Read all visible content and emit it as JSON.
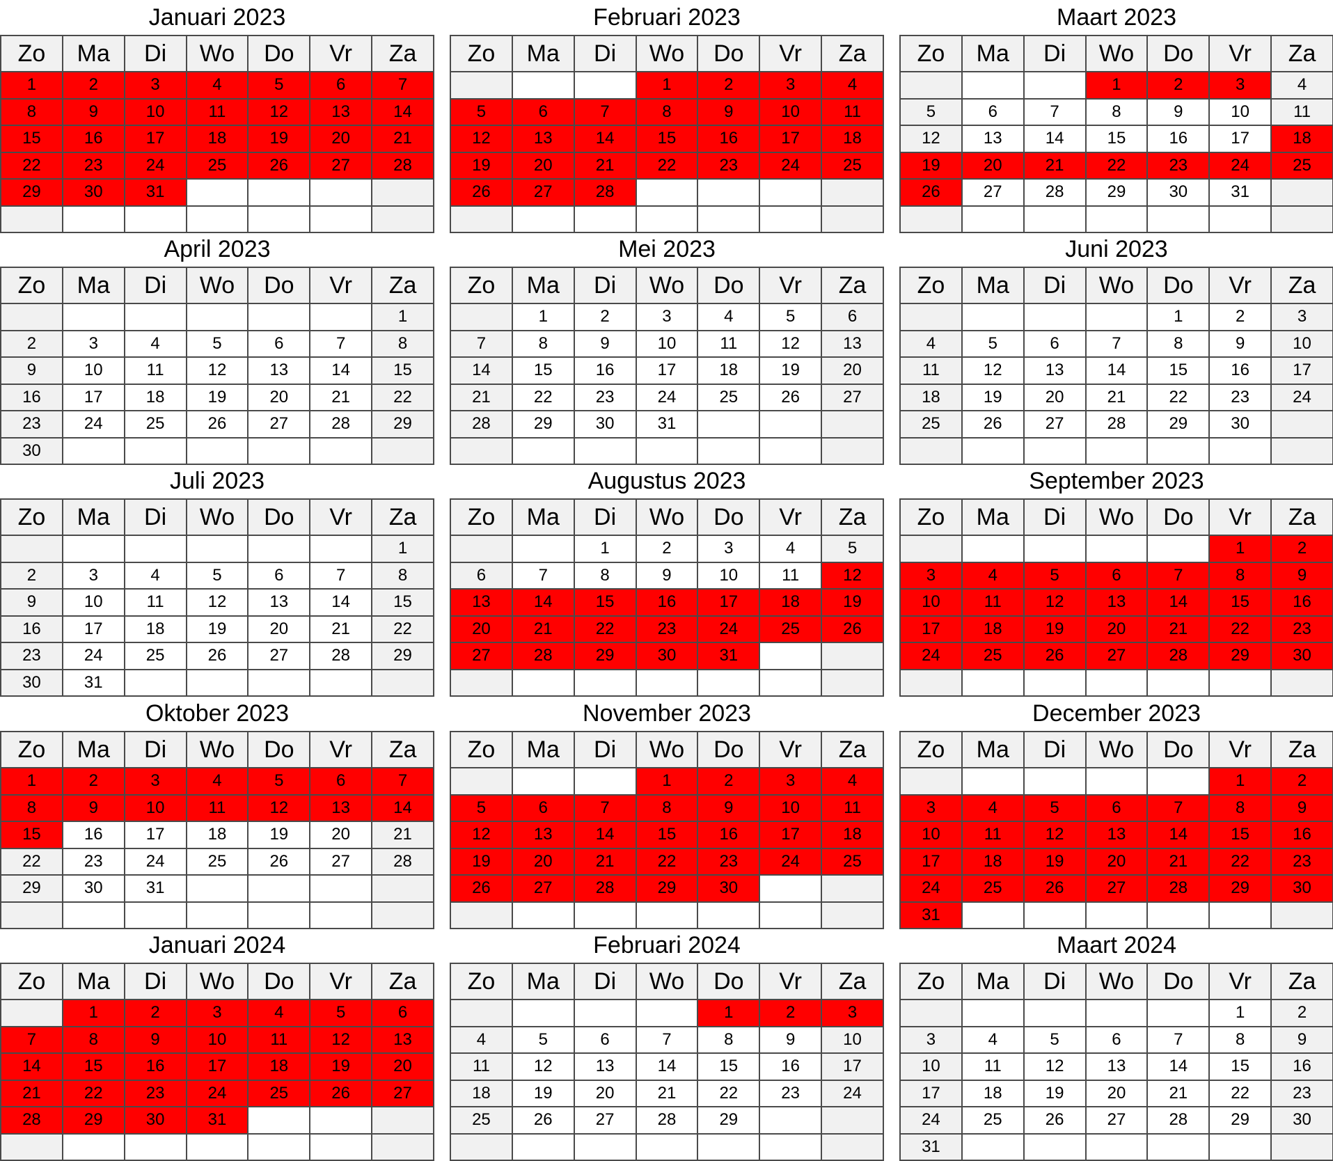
{
  "calendar": {
    "weekdays": [
      "Zo",
      "Ma",
      "Di",
      "Wo",
      "Do",
      "Vr",
      "Za"
    ],
    "highlight_color": "#ff0000",
    "months": [
      {
        "title": "Januari 2023",
        "start_weekday": 0,
        "days": 31,
        "highlighted": [
          [
            1,
            31
          ]
        ]
      },
      {
        "title": "Februari 2023",
        "start_weekday": 3,
        "days": 28,
        "highlighted": [
          [
            1,
            28
          ]
        ]
      },
      {
        "title": "Maart 2023",
        "start_weekday": 3,
        "days": 31,
        "highlighted": [
          [
            1,
            3
          ],
          [
            18,
            26
          ]
        ]
      },
      {
        "title": "April 2023",
        "start_weekday": 6,
        "days": 30,
        "highlighted": []
      },
      {
        "title": "Mei 2023",
        "start_weekday": 1,
        "days": 31,
        "highlighted": []
      },
      {
        "title": "Juni 2023",
        "start_weekday": 4,
        "days": 30,
        "highlighted": []
      },
      {
        "title": "Juli 2023",
        "start_weekday": 6,
        "days": 31,
        "highlighted": []
      },
      {
        "title": "Augustus 2023",
        "start_weekday": 2,
        "days": 31,
        "highlighted": [
          [
            12,
            31
          ]
        ]
      },
      {
        "title": "September 2023",
        "start_weekday": 5,
        "days": 30,
        "highlighted": [
          [
            1,
            30
          ]
        ]
      },
      {
        "title": "Oktober 2023",
        "start_weekday": 0,
        "days": 31,
        "highlighted": [
          [
            1,
            15
          ]
        ]
      },
      {
        "title": "November 2023",
        "start_weekday": 3,
        "days": 30,
        "highlighted": [
          [
            1,
            30
          ]
        ]
      },
      {
        "title": "December 2023",
        "start_weekday": 5,
        "days": 31,
        "highlighted": [
          [
            1,
            31
          ]
        ]
      },
      {
        "title": "Januari 2024",
        "start_weekday": 1,
        "days": 31,
        "highlighted": [
          [
            1,
            31
          ]
        ]
      },
      {
        "title": "Februari 2024",
        "start_weekday": 4,
        "days": 29,
        "highlighted": [
          [
            1,
            3
          ]
        ]
      },
      {
        "title": "Maart 2024",
        "start_weekday": 5,
        "days": 31,
        "highlighted": []
      }
    ]
  }
}
